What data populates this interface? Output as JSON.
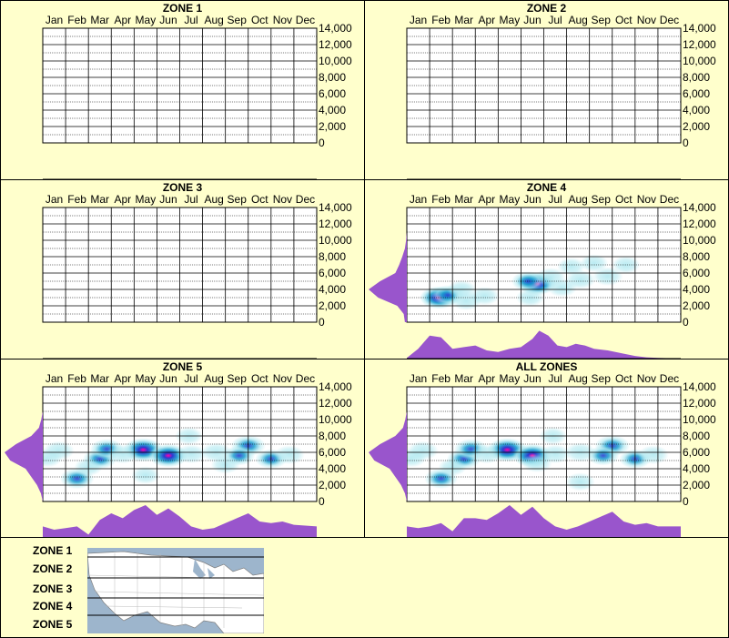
{
  "months": [
    "Jan",
    "Feb",
    "Mar",
    "Apr",
    "May",
    "Jun",
    "Jul",
    "Aug",
    "Sep",
    "Oct",
    "Nov",
    "Dec"
  ],
  "yticks": [
    "14,000",
    "12,000",
    "10,000",
    "8,000",
    "6,000",
    "4,000",
    "2,000",
    "0"
  ],
  "colors": {
    "background": "#ffffcc",
    "density_fill": "#9955cc",
    "heat_low": "#aee8f0",
    "heat_mid": "#1a9fcf",
    "heat_high": "#2a3cd0",
    "heat_peak": "#ff00aa"
  },
  "chart_data": [
    {
      "type": "heatmap",
      "title": "ZONE 1",
      "ylim": [
        0,
        14000
      ],
      "hotspots": [],
      "side_profile": [],
      "bottom_profile": []
    },
    {
      "type": "heatmap",
      "title": "ZONE 2",
      "ylim": [
        0,
        14000
      ],
      "hotspots": [],
      "side_profile": [],
      "bottom_profile": []
    },
    {
      "type": "heatmap",
      "title": "ZONE 3",
      "ylim": [
        0,
        14000
      ],
      "hotspots": [],
      "side_profile": [],
      "bottom_profile": []
    },
    {
      "type": "heatmap",
      "title": "ZONE 4",
      "ylim": [
        0,
        14000
      ],
      "hotspots": [
        {
          "month": 2.4,
          "elev": 3000,
          "i": 0.85
        },
        {
          "month": 2.8,
          "elev": 3300,
          "i": 0.5
        },
        {
          "month": 3.6,
          "elev": 2600,
          "i": 0.35
        },
        {
          "month": 4.4,
          "elev": 3200,
          "i": 0.3
        },
        {
          "month": 3.4,
          "elev": 4000,
          "i": 0.25
        },
        {
          "month": 6.7,
          "elev": 4700,
          "i": 0.9
        },
        {
          "month": 6.3,
          "elev": 5000,
          "i": 0.5
        },
        {
          "month": 7.3,
          "elev": 5500,
          "i": 0.35
        },
        {
          "month": 8.6,
          "elev": 5200,
          "i": 0.35
        },
        {
          "month": 7.8,
          "elev": 4200,
          "i": 0.3
        },
        {
          "month": 9.8,
          "elev": 5600,
          "i": 0.35
        },
        {
          "month": 9.2,
          "elev": 7200,
          "i": 0.2
        },
        {
          "month": 10.6,
          "elev": 7000,
          "i": 0.18
        },
        {
          "month": 8.2,
          "elev": 6800,
          "i": 0.18
        },
        {
          "month": 6.4,
          "elev": 3000,
          "i": 0.2
        }
      ],
      "side_profile": [
        [
          0,
          0.05
        ],
        [
          1000,
          0.08
        ],
        [
          2000,
          0.25
        ],
        [
          3000,
          0.75
        ],
        [
          4000,
          1.0
        ],
        [
          5000,
          0.7
        ],
        [
          6000,
          0.3
        ],
        [
          7000,
          0.2
        ],
        [
          8000,
          0.12
        ],
        [
          9000,
          0.05
        ],
        [
          10000,
          0.02
        ],
        [
          11000,
          0
        ]
      ],
      "bottom_profile": [
        [
          1,
          0.02
        ],
        [
          1.5,
          0.3
        ],
        [
          2,
          0.7
        ],
        [
          2.5,
          0.65
        ],
        [
          3,
          0.3
        ],
        [
          3.5,
          0.35
        ],
        [
          4,
          0.4
        ],
        [
          4.5,
          0.25
        ],
        [
          5,
          0.2
        ],
        [
          5.5,
          0.3
        ],
        [
          6,
          0.35
        ],
        [
          6.5,
          0.6
        ],
        [
          6.8,
          0.85
        ],
        [
          7.2,
          0.7
        ],
        [
          7.6,
          0.4
        ],
        [
          8,
          0.35
        ],
        [
          8.4,
          0.45
        ],
        [
          8.8,
          0.4
        ],
        [
          9.2,
          0.3
        ],
        [
          9.8,
          0.25
        ],
        [
          10.5,
          0.15
        ],
        [
          11,
          0.08
        ],
        [
          11.5,
          0.04
        ],
        [
          12,
          0.02
        ],
        [
          13,
          0
        ]
      ]
    },
    {
      "type": "heatmap",
      "title": "ZONE 5",
      "ylim": [
        0,
        14000
      ],
      "hotspots": [
        {
          "month": 5.4,
          "elev": 6300,
          "i": 1.0
        },
        {
          "month": 6.5,
          "elev": 5600,
          "i": 0.95
        },
        {
          "month": 10.0,
          "elev": 6800,
          "i": 0.65
        },
        {
          "month": 3.5,
          "elev": 5200,
          "i": 0.6
        },
        {
          "month": 3.8,
          "elev": 6400,
          "i": 0.55
        },
        {
          "month": 2.5,
          "elev": 2800,
          "i": 0.6
        },
        {
          "month": 1.7,
          "elev": 6200,
          "i": 0.4
        },
        {
          "month": 4.5,
          "elev": 5800,
          "i": 0.4
        },
        {
          "month": 7.5,
          "elev": 5800,
          "i": 0.35
        },
        {
          "month": 8.6,
          "elev": 6000,
          "i": 0.4
        },
        {
          "month": 9.6,
          "elev": 5600,
          "i": 0.45
        },
        {
          "month": 11.0,
          "elev": 5200,
          "i": 0.45
        },
        {
          "month": 11.8,
          "elev": 5700,
          "i": 0.35
        },
        {
          "month": 1.2,
          "elev": 5300,
          "i": 0.3
        },
        {
          "month": 5.5,
          "elev": 3200,
          "i": 0.2
        },
        {
          "month": 7.4,
          "elev": 8000,
          "i": 0.15
        },
        {
          "month": 9.0,
          "elev": 4500,
          "i": 0.25
        },
        {
          "month": 3.0,
          "elev": 4200,
          "i": 0.2
        }
      ],
      "side_profile": [
        [
          0,
          0
        ],
        [
          1000,
          0.05
        ],
        [
          2000,
          0.15
        ],
        [
          3000,
          0.3
        ],
        [
          4000,
          0.45
        ],
        [
          5000,
          0.85
        ],
        [
          6000,
          1.0
        ],
        [
          7000,
          0.7
        ],
        [
          8000,
          0.3
        ],
        [
          9000,
          0.1
        ],
        [
          10000,
          0.04
        ],
        [
          11000,
          0
        ]
      ],
      "bottom_profile": [
        [
          1,
          0.35
        ],
        [
          1.5,
          0.25
        ],
        [
          2,
          0.3
        ],
        [
          2.5,
          0.35
        ],
        [
          3,
          0.1
        ],
        [
          3.5,
          0.55
        ],
        [
          4,
          0.75
        ],
        [
          4.5,
          0.6
        ],
        [
          5,
          0.85
        ],
        [
          5.5,
          1.0
        ],
        [
          6,
          0.7
        ],
        [
          6.5,
          0.9
        ],
        [
          7,
          0.65
        ],
        [
          7.5,
          0.35
        ],
        [
          8,
          0.25
        ],
        [
          8.5,
          0.3
        ],
        [
          9,
          0.45
        ],
        [
          9.5,
          0.6
        ],
        [
          10,
          0.75
        ],
        [
          10.5,
          0.5
        ],
        [
          11,
          0.45
        ],
        [
          11.5,
          0.5
        ],
        [
          12,
          0.4
        ],
        [
          13,
          0.35
        ]
      ]
    },
    {
      "type": "heatmap",
      "title": "ALL ZONES",
      "ylim": [
        0,
        14000
      ],
      "hotspots": [
        {
          "month": 5.4,
          "elev": 6300,
          "i": 1.0
        },
        {
          "month": 6.5,
          "elev": 5600,
          "i": 0.95
        },
        {
          "month": 10.0,
          "elev": 6800,
          "i": 0.65
        },
        {
          "month": 3.5,
          "elev": 5200,
          "i": 0.6
        },
        {
          "month": 3.8,
          "elev": 6400,
          "i": 0.55
        },
        {
          "month": 2.5,
          "elev": 2800,
          "i": 0.55
        },
        {
          "month": 1.7,
          "elev": 6200,
          "i": 0.4
        },
        {
          "month": 4.5,
          "elev": 5800,
          "i": 0.4
        },
        {
          "month": 7.5,
          "elev": 5800,
          "i": 0.35
        },
        {
          "month": 8.6,
          "elev": 6000,
          "i": 0.4
        },
        {
          "month": 9.6,
          "elev": 5600,
          "i": 0.45
        },
        {
          "month": 11.0,
          "elev": 5200,
          "i": 0.45
        },
        {
          "month": 11.8,
          "elev": 5700,
          "i": 0.35
        },
        {
          "month": 1.2,
          "elev": 5300,
          "i": 0.3
        },
        {
          "month": 6.7,
          "elev": 4700,
          "i": 0.35
        },
        {
          "month": 8.6,
          "elev": 2400,
          "i": 0.25
        },
        {
          "month": 3.0,
          "elev": 4200,
          "i": 0.2
        },
        {
          "month": 7.4,
          "elev": 8000,
          "i": 0.15
        }
      ],
      "side_profile": [
        [
          0,
          0
        ],
        [
          1000,
          0.05
        ],
        [
          2000,
          0.15
        ],
        [
          3000,
          0.3
        ],
        [
          4000,
          0.45
        ],
        [
          5000,
          0.85
        ],
        [
          6000,
          1.0
        ],
        [
          7000,
          0.7
        ],
        [
          8000,
          0.3
        ],
        [
          9000,
          0.1
        ],
        [
          10000,
          0.04
        ],
        [
          11000,
          0
        ]
      ],
      "bottom_profile": [
        [
          1,
          0.35
        ],
        [
          1.5,
          0.3
        ],
        [
          2,
          0.35
        ],
        [
          2.5,
          0.45
        ],
        [
          3,
          0.2
        ],
        [
          3.5,
          0.6
        ],
        [
          4,
          0.6
        ],
        [
          4.5,
          0.55
        ],
        [
          5,
          0.75
        ],
        [
          5.5,
          1.0
        ],
        [
          6,
          0.7
        ],
        [
          6.5,
          0.95
        ],
        [
          7,
          0.6
        ],
        [
          7.5,
          0.35
        ],
        [
          8,
          0.25
        ],
        [
          8.5,
          0.35
        ],
        [
          9,
          0.5
        ],
        [
          9.5,
          0.65
        ],
        [
          10,
          0.8
        ],
        [
          10.5,
          0.5
        ],
        [
          11,
          0.4
        ],
        [
          11.5,
          0.45
        ],
        [
          12,
          0.35
        ],
        [
          13,
          0.35
        ]
      ]
    }
  ],
  "legend": {
    "zones": [
      "ZONE 1",
      "ZONE 2",
      "ZONE 3",
      "ZONE 4",
      "ZONE 5"
    ]
  }
}
